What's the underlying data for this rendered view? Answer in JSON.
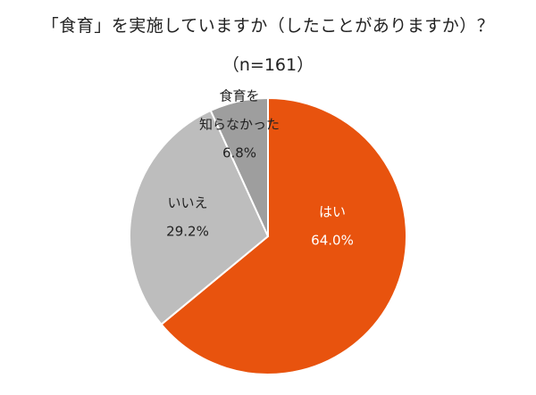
{
  "title": "「食育」を実施していますか（したことがありますか）？",
  "subtitle": "（n=161）",
  "chart_data": {
    "type": "pie",
    "start_angle_deg": 0,
    "direction": "clockwise",
    "slices": [
      {
        "label_lines": [
          "はい"
        ],
        "value_text": "64.0%",
        "value": 64.0,
        "color": "#e8530e",
        "label_color": "#ffffff"
      },
      {
        "label_lines": [
          "いいえ"
        ],
        "value_text": "29.2%",
        "value": 29.2,
        "color": "#bdbdbd",
        "label_color": "#222222"
      },
      {
        "label_lines": [
          "食育を",
          "知らなかった"
        ],
        "value_text": "6.8%",
        "value": 6.8,
        "color": "#9e9e9e",
        "label_color": "#222222"
      }
    ]
  }
}
